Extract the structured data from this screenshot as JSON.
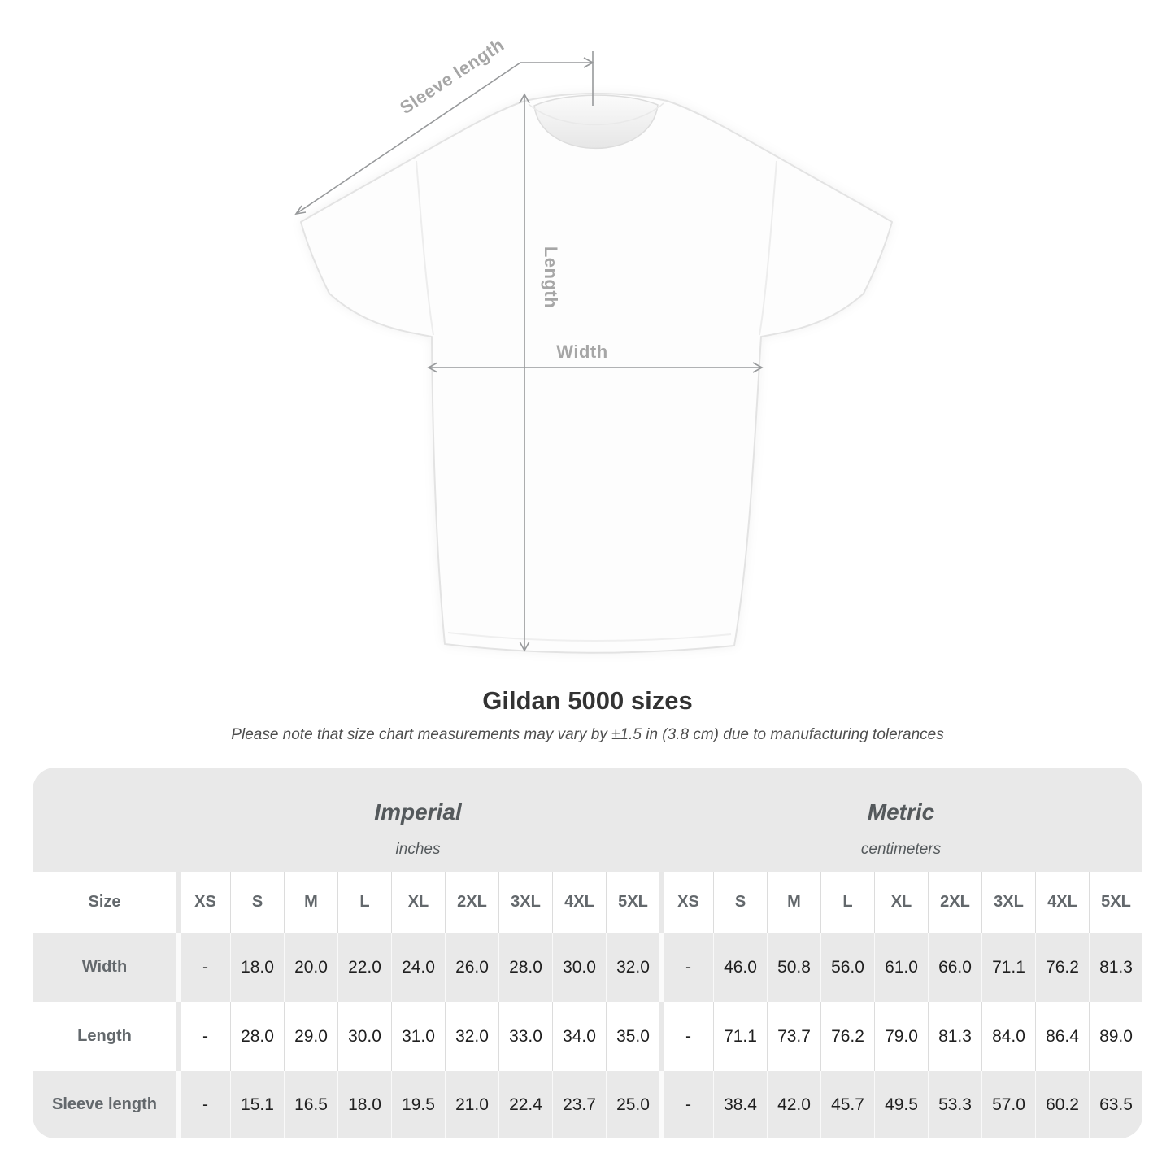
{
  "diagram": {
    "sleeve_length_label": "Sleeve length",
    "length_label": "Length",
    "width_label": "Width",
    "arrow_color": "#97999b",
    "label_color": "#a6a6a6"
  },
  "heading": {
    "title": "Gildan 5000 sizes",
    "note": "Please note that size chart measurements may vary by ±1.5 in (3.8 cm) due to manufacturing tolerances"
  },
  "table": {
    "size_header_label": "Size",
    "sections": [
      {
        "label": "Imperial",
        "unit": "inches"
      },
      {
        "label": "Metric",
        "unit": "centimeters"
      }
    ],
    "row_band_gray": "#e9e9e9",
    "row_band_white": "#ffffff"
  },
  "chart_data": {
    "type": "table",
    "title": "Gildan 5000 sizes",
    "note": "Please note that size chart measurements may vary by ±1.5 in (3.8 cm) due to manufacturing tolerances",
    "sizes": [
      "XS",
      "S",
      "M",
      "L",
      "XL",
      "2XL",
      "3XL",
      "4XL",
      "5XL"
    ],
    "units": [
      {
        "name": "Imperial",
        "unit": "inches",
        "rows": [
          {
            "label": "Width",
            "values": [
              null,
              18.0,
              20.0,
              22.0,
              24.0,
              26.0,
              28.0,
              30.0,
              32.0
            ]
          },
          {
            "label": "Length",
            "values": [
              null,
              28.0,
              29.0,
              30.0,
              31.0,
              32.0,
              33.0,
              34.0,
              35.0
            ]
          },
          {
            "label": "Sleeve length",
            "values": [
              null,
              15.1,
              16.5,
              18.0,
              19.5,
              21.0,
              22.4,
              23.7,
              25.0
            ]
          }
        ]
      },
      {
        "name": "Metric",
        "unit": "centimeters",
        "rows": [
          {
            "label": "Width",
            "values": [
              null,
              46.0,
              50.8,
              56.0,
              61.0,
              66.0,
              71.1,
              76.2,
              81.3
            ]
          },
          {
            "label": "Length",
            "values": [
              null,
              71.1,
              73.7,
              76.2,
              79.0,
              81.3,
              84.0,
              86.4,
              89.0
            ]
          },
          {
            "label": "Sleeve length",
            "values": [
              null,
              38.4,
              42.0,
              45.7,
              49.5,
              53.3,
              57.0,
              60.2,
              63.5
            ]
          }
        ]
      }
    ]
  }
}
